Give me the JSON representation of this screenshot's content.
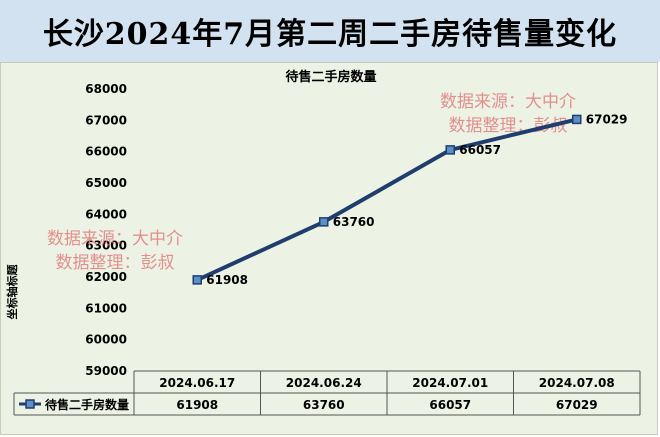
{
  "page": {
    "title": "长沙2024年7月第二周二手房待售量变化"
  },
  "chart_data": {
    "type": "line",
    "title": "待售二手房数量",
    "xlabel": "",
    "ylabel": "坐标轴标题",
    "ylim": [
      59000,
      68000
    ],
    "ytick_step": 1000,
    "categories": [
      "2024.06.17",
      "2024.06.24",
      "2024.07.01",
      "2024.07.08"
    ],
    "series": [
      {
        "name": "待售二手房数量",
        "values": [
          61908,
          63760,
          66057,
          67029
        ],
        "color": "#1f3d6e",
        "marker_color": "#5b8fc7"
      }
    ],
    "data_labels": [
      "61908",
      "63760",
      "66057",
      "67029"
    ],
    "data_table": true,
    "legend": "in-data-table",
    "grid": false,
    "watermarks": [
      {
        "line1": "数据来源：大中介",
        "line2": "数据整理：彭叔"
      },
      {
        "line1": "数据来源：大中介",
        "line2": "数据整理：彭叔"
      }
    ],
    "watermark_color": "#e08080",
    "background_color": "#ecf2e4",
    "title_bar_color": "#d2e2f1"
  }
}
